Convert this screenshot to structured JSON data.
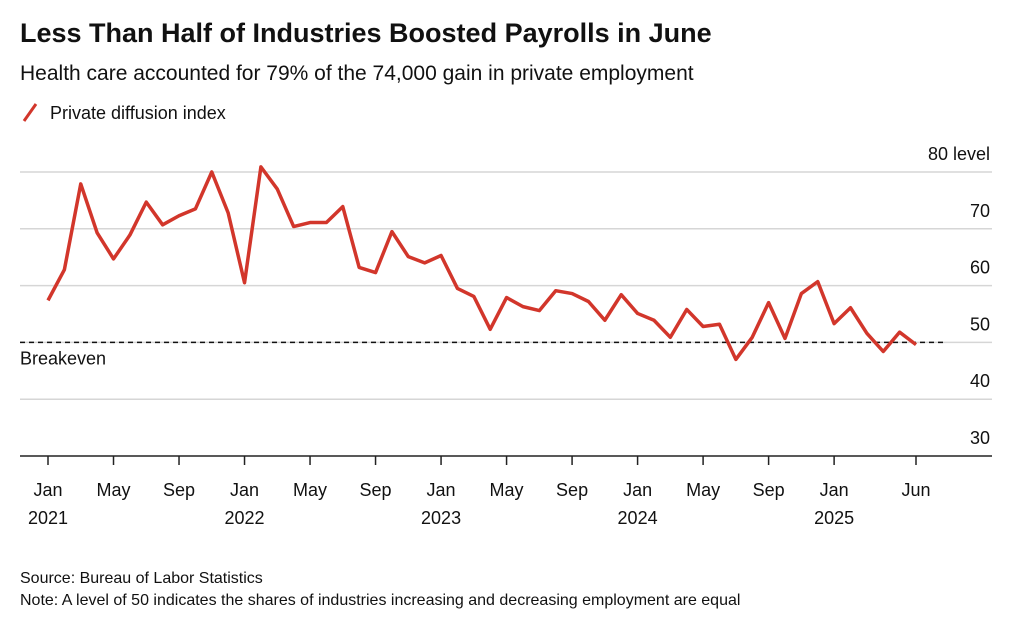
{
  "chart_data": {
    "type": "line",
    "title": "Less Than Half of Industries Boosted Payrolls in June",
    "subtitle": "Health care accounted for 79% of the 74,000 gain in private employment",
    "x": [
      "2021-01",
      "2021-02",
      "2021-03",
      "2021-04",
      "2021-05",
      "2021-06",
      "2021-07",
      "2021-08",
      "2021-09",
      "2021-10",
      "2021-11",
      "2021-12",
      "2022-01",
      "2022-02",
      "2022-03",
      "2022-04",
      "2022-05",
      "2022-06",
      "2022-07",
      "2022-08",
      "2022-09",
      "2022-10",
      "2022-11",
      "2022-12",
      "2023-01",
      "2023-02",
      "2023-03",
      "2023-04",
      "2023-05",
      "2023-06",
      "2023-07",
      "2023-08",
      "2023-09",
      "2023-10",
      "2023-11",
      "2023-12",
      "2024-01",
      "2024-02",
      "2024-03",
      "2024-04",
      "2024-05",
      "2024-06",
      "2024-07",
      "2024-08",
      "2024-09",
      "2024-10",
      "2024-11",
      "2024-12",
      "2025-01",
      "2025-02",
      "2025-03",
      "2025-04",
      "2025-05",
      "2025-06"
    ],
    "series": [
      {
        "name": "Private diffusion index",
        "color": "#d2362b",
        "values": [
          57.4,
          62.8,
          77.9,
          69.3,
          64.7,
          68.9,
          74.7,
          70.7,
          72.3,
          73.5,
          80.0,
          72.8,
          60.5,
          80.9,
          77.0,
          70.4,
          71.1,
          71.1,
          73.9,
          63.2,
          62.3,
          69.5,
          65.1,
          64.0,
          65.3,
          59.5,
          58.1,
          52.3,
          57.9,
          56.3,
          55.6,
          59.1,
          58.6,
          57.2,
          53.9,
          58.4,
          55.1,
          53.9,
          50.9,
          55.8,
          52.8,
          53.2,
          47.0,
          50.9,
          57.0,
          50.7,
          58.6,
          60.7,
          53.3,
          56.1,
          51.6,
          48.4,
          51.8,
          49.6
        ]
      }
    ],
    "ylim": [
      30,
      80
    ],
    "yticks": [
      30,
      40,
      50,
      60,
      70,
      {
        "value": 80,
        "label": "80 level"
      }
    ],
    "xticks": [
      {
        "value": "2021-01",
        "label": "Jan"
      },
      {
        "value": "2021-05",
        "label": "May"
      },
      {
        "value": "2021-09",
        "label": "Sep"
      },
      {
        "value": "2022-01",
        "label": "Jan"
      },
      {
        "value": "2022-05",
        "label": "May"
      },
      {
        "value": "2022-09",
        "label": "Sep"
      },
      {
        "value": "2023-01",
        "label": "Jan"
      },
      {
        "value": "2023-05",
        "label": "May"
      },
      {
        "value": "2023-09",
        "label": "Sep"
      },
      {
        "value": "2024-01",
        "label": "Jan"
      },
      {
        "value": "2024-05",
        "label": "May"
      },
      {
        "value": "2024-09",
        "label": "Sep"
      },
      {
        "value": "2025-01",
        "label": "Jan"
      },
      {
        "value": "2025-06",
        "label": "Jun"
      }
    ],
    "year_labels": [
      {
        "value": "2021-01",
        "label": "2021"
      },
      {
        "value": "2022-01",
        "label": "2022"
      },
      {
        "value": "2023-01",
        "label": "2023"
      },
      {
        "value": "2024-01",
        "label": "2024"
      },
      {
        "value": "2025-01",
        "label": "2025"
      }
    ],
    "reference_line": {
      "value": 50,
      "label": "Breakeven"
    },
    "grid": true,
    "source": "Source: Bureau of Labor Statistics",
    "note": "Note: A level of 50 indicates the shares of industries increasing and decreasing employment are equal"
  }
}
